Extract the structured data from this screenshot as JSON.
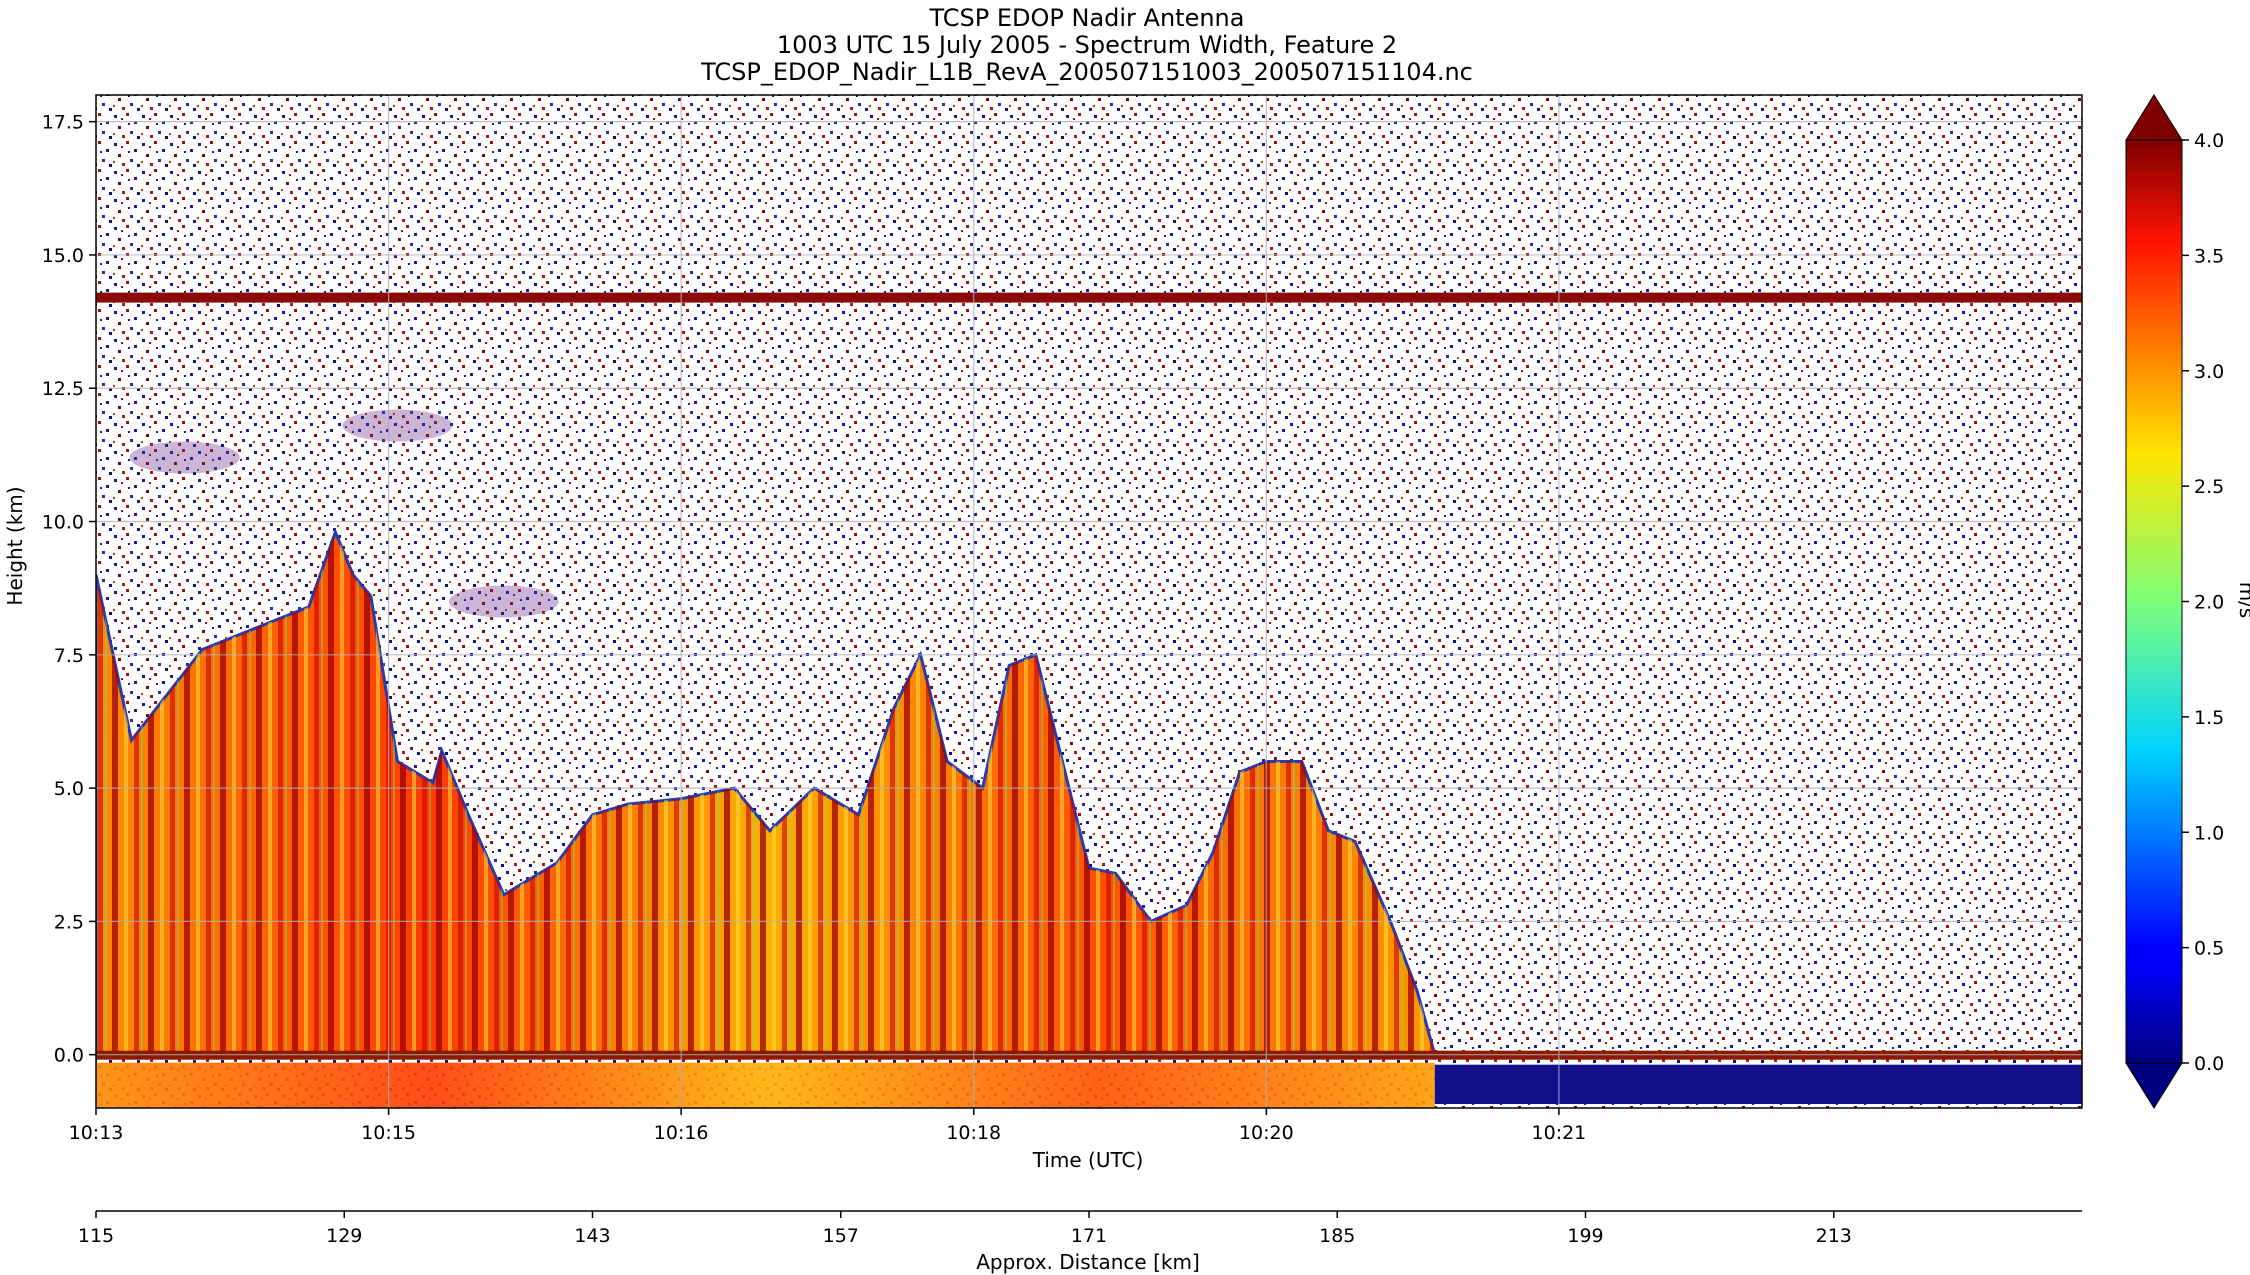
{
  "chart_data": {
    "type": "heatmap",
    "title_lines": [
      "TCSP EDOP Nadir Antenna",
      "1003 UTC 15 July 2005 - Spectrum Width, Feature 2",
      "TCSP_EDOP_Nadir_L1B_RevA_200507151003_200507151104.nc"
    ],
    "xlabel": "Time (UTC)",
    "ylabel": "Height (km)",
    "secondary_xlabel": "Approx. Distance [km]",
    "colorbar_label": "m/s",
    "x_ticks": [
      "10:13",
      "10:15",
      "10:16",
      "10:18",
      "10:20",
      "10:21"
    ],
    "y_ticks": [
      0.0,
      2.5,
      5.0,
      7.5,
      10.0,
      12.5,
      15.0,
      17.5
    ],
    "y_tick_labels": [
      "0.0",
      "2.5",
      "5.0",
      "7.5",
      "10.0",
      "12.5",
      "15.0",
      "17.5"
    ],
    "ylim": [
      -1.0,
      18.0
    ],
    "distance_ticks": [
      115,
      129,
      143,
      157,
      171,
      185,
      199,
      213
    ],
    "distance_tick_labels": [
      "115",
      "129",
      "143",
      "157",
      "171",
      "185",
      "199",
      "213"
    ],
    "distance_range": [
      115,
      227
    ],
    "colorbar_ticks": [
      0.0,
      0.5,
      1.0,
      1.5,
      2.0,
      2.5,
      3.0,
      3.5,
      4.0
    ],
    "colorbar_tick_labels": [
      "0.0",
      "0.5",
      "1.0",
      "1.5",
      "2.0",
      "2.5",
      "3.0",
      "3.5",
      "4.0"
    ],
    "colorbar_range": [
      0.0,
      4.0
    ],
    "colormap": "jet",
    "colorbar_extend": "both",
    "grid": true,
    "features": {
      "upper_band_height_km": 14.2,
      "surface_height_km": 0.0,
      "convective_tops": [
        {
          "distance_km": 115,
          "top_km": 9.0
        },
        {
          "distance_km": 117,
          "top_km": 5.9
        },
        {
          "distance_km": 121,
          "top_km": 7.6
        },
        {
          "distance_km": 127,
          "top_km": 8.4
        },
        {
          "distance_km": 128.5,
          "top_km": 9.8
        },
        {
          "distance_km": 129.5,
          "top_km": 9.0
        },
        {
          "distance_km": 130.5,
          "top_km": 8.6
        },
        {
          "distance_km": 132,
          "top_km": 5.5
        },
        {
          "distance_km": 134,
          "top_km": 5.1
        },
        {
          "distance_km": 134.5,
          "top_km": 5.7
        },
        {
          "distance_km": 136,
          "top_km": 4.5
        },
        {
          "distance_km": 138,
          "top_km": 3.0
        },
        {
          "distance_km": 141,
          "top_km": 3.6
        },
        {
          "distance_km": 143,
          "top_km": 4.5
        },
        {
          "distance_km": 145,
          "top_km": 4.7
        },
        {
          "distance_km": 148,
          "top_km": 4.8
        },
        {
          "distance_km": 151,
          "top_km": 5.0
        },
        {
          "distance_km": 153,
          "top_km": 4.2
        },
        {
          "distance_km": 155.5,
          "top_km": 5.0
        },
        {
          "distance_km": 158,
          "top_km": 4.5
        },
        {
          "distance_km": 160,
          "top_km": 6.5
        },
        {
          "distance_km": 161.5,
          "top_km": 7.5
        },
        {
          "distance_km": 163,
          "top_km": 5.5
        },
        {
          "distance_km": 165,
          "top_km": 5.0
        },
        {
          "distance_km": 166.5,
          "top_km": 7.3
        },
        {
          "distance_km": 168,
          "top_km": 7.5
        },
        {
          "distance_km": 169.5,
          "top_km": 5.5
        },
        {
          "distance_km": 171,
          "top_km": 3.5
        },
        {
          "distance_km": 172.5,
          "top_km": 3.4
        },
        {
          "distance_km": 174.5,
          "top_km": 2.5
        },
        {
          "distance_km": 176.5,
          "top_km": 2.8
        },
        {
          "distance_km": 178,
          "top_km": 3.8
        },
        {
          "distance_km": 179.5,
          "top_km": 5.3
        },
        {
          "distance_km": 181,
          "top_km": 5.5
        },
        {
          "distance_km": 183,
          "top_km": 5.5
        },
        {
          "distance_km": 184.5,
          "top_km": 4.2
        },
        {
          "distance_km": 186,
          "top_km": 4.0
        },
        {
          "distance_km": 188,
          "top_km": 2.5
        },
        {
          "distance_km": 189.5,
          "top_km": 1.2
        },
        {
          "distance_km": 190.5,
          "top_km": 0.0
        }
      ],
      "cirrus_patches": [
        {
          "distance_km": 120,
          "height_km": 11.2,
          "label_visible": false
        },
        {
          "distance_km": 132,
          "height_km": 11.8,
          "label_visible": false
        },
        {
          "distance_km": 138,
          "height_km": 8.5,
          "label_visible": false
        }
      ]
    }
  }
}
